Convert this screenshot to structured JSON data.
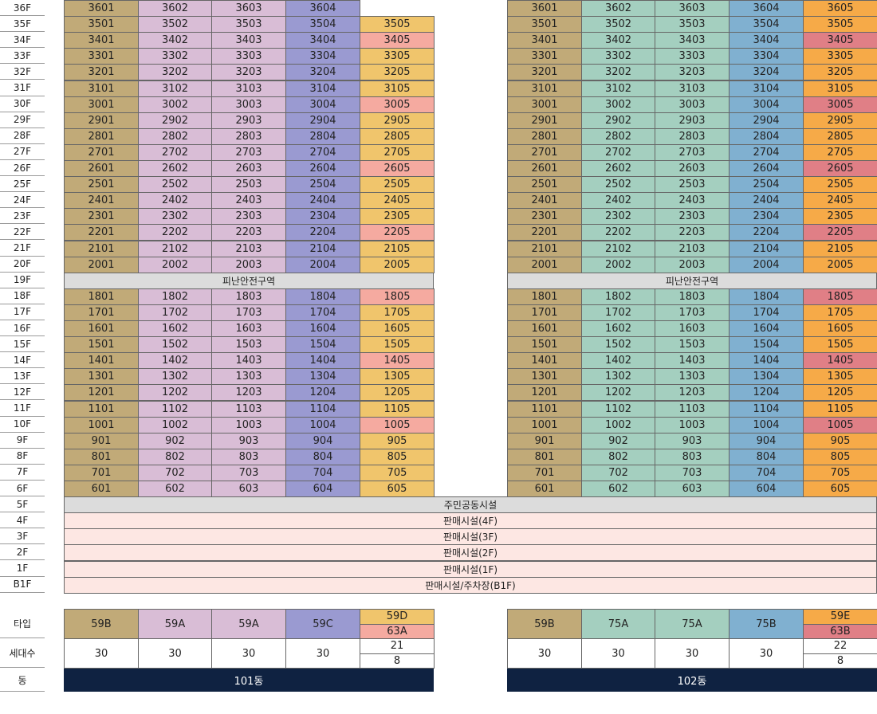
{
  "colors": {
    "b101_59B": "#c1aa78",
    "b101_59A": "#d9bdd6",
    "b101_59C": "#9a9ad1",
    "b101_59D": "#f0c56c",
    "b101_63A": "#f5aaa0",
    "b102_59B": "#c1aa78",
    "b102_75A": "#a4cfbf",
    "b102_75B": "#80b0d0",
    "b102_59E": "#f6aa48",
    "b102_63B": "#e07f86",
    "refuge": "#dcdcdc",
    "community": "#dcdcdc",
    "retail": "#fde7e3"
  },
  "refuge_floor": 19,
  "refuge_label": "피난안전구역",
  "pink_floors": [
    34,
    30,
    26,
    22,
    18,
    14,
    10
  ],
  "floor_labels": [
    "36F",
    "35F",
    "34F",
    "33F",
    "32F",
    "31F",
    "30F",
    "29F",
    "28F",
    "27F",
    "26F",
    "25F",
    "24F",
    "23F",
    "22F",
    "21F",
    "20F",
    "19F",
    "18F",
    "17F",
    "16F",
    "15F",
    "14F",
    "13F",
    "12F",
    "11F",
    "10F",
    "9F",
    "8F",
    "7F",
    "6F",
    "5F",
    "4F",
    "3F",
    "2F",
    "1F",
    "B1F"
  ],
  "podium": [
    {
      "floor": "5F",
      "label": "주민공동시설",
      "type": "community"
    },
    {
      "floor": "4F",
      "label": "판매시설(4F)",
      "type": "retail"
    },
    {
      "floor": "3F",
      "label": "판매시설(3F)",
      "type": "retail"
    },
    {
      "floor": "2F",
      "label": "판매시설(2F)",
      "type": "retail"
    },
    {
      "floor": "1F",
      "label": "판매시설(1F)",
      "type": "retail"
    },
    {
      "floor": "B1F",
      "label": "판매시설/주차장(B1F)",
      "type": "retail"
    }
  ],
  "summary_labels": {
    "type": "타입",
    "households": "세대수",
    "dong": "동"
  },
  "buildings": [
    {
      "id": "101",
      "dong_label": "101동",
      "top_floor_units": 4,
      "lines": [
        {
          "type": "59B",
          "households": "30",
          "color_key": "b101_59B"
        },
        {
          "type": "59A",
          "households": "30",
          "color_key": "b101_59A"
        },
        {
          "type": "59A",
          "households": "30",
          "color_key": "b101_59A"
        },
        {
          "type": "59C",
          "households": "30",
          "color_key": "b101_59C"
        },
        {
          "type": "59D",
          "type2": "63A",
          "households": "21",
          "households2": "8",
          "color_key": "b101_59D",
          "color_key2": "b101_63A"
        }
      ]
    },
    {
      "id": "102",
      "dong_label": "102동",
      "top_floor_units": 5,
      "lines": [
        {
          "type": "59B",
          "households": "30",
          "color_key": "b102_59B"
        },
        {
          "type": "75A",
          "households": "30",
          "color_key": "b102_75A"
        },
        {
          "type": "75A",
          "households": "30",
          "color_key": "b102_75A"
        },
        {
          "type": "75B",
          "households": "30",
          "color_key": "b102_75B"
        },
        {
          "type": "59E",
          "type2": "63B",
          "households": "22",
          "households2": "8",
          "color_key": "b102_59E",
          "color_key2": "b102_63B"
        }
      ]
    }
  ]
}
